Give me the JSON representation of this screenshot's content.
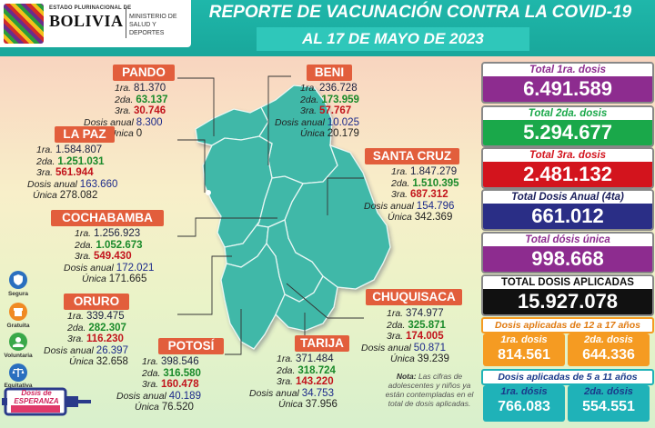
{
  "header": {
    "logo_small": "ESTADO PLURINACIONAL DE",
    "logo_big": "BOLIVIA",
    "ministry": "MINISTERIO DE SALUD Y DEPORTES",
    "title": "REPORTE DE VACUNACIÓN CONTRA LA COVID-19",
    "date": "AL 17 DE MAYO  DE 2023"
  },
  "labels": {
    "d1": "1ra.",
    "d2": "2da.",
    "d3": "3ra.",
    "anual": "Dosis anual",
    "unica": "Única"
  },
  "departments": [
    {
      "name": "PANDO",
      "d1": "81.370",
      "d2": "63.137",
      "d3": "30.746",
      "anual": "8.300",
      "unica": "0"
    },
    {
      "name": "BENI",
      "d1": "236.728",
      "d2": "173.959",
      "d3": "57.767",
      "anual": "10.025",
      "unica": "20.179"
    },
    {
      "name": "LA PAZ",
      "d1": "1.584.807",
      "d2": "1.251.031",
      "d3": "561.944",
      "anual": "163.660",
      "unica": "278.082"
    },
    {
      "name": "SANTA CRUZ",
      "d1": "1.847.279",
      "d2": "1.510.395",
      "d3": "687.312",
      "anual": "154.796",
      "unica": "342.369"
    },
    {
      "name": "COCHABAMBA",
      "d1": "1.256.923",
      "d2": "1.052.673",
      "d3": "549.430",
      "anual": "172.021",
      "unica": "171.665"
    },
    {
      "name": "ORURO",
      "d1": "339.475",
      "d2": "282.307",
      "d3": "116.230",
      "anual": "26.397",
      "unica": "32.658"
    },
    {
      "name": "CHUQUISACA",
      "d1": "374.977",
      "d2": "325.871",
      "d3": "174.005",
      "anual": "50.871",
      "unica": "39.239"
    },
    {
      "name": "POTOSÍ",
      "d1": "398.546",
      "d2": "316.580",
      "d3": "160.478",
      "anual": "40.189",
      "unica": "76.520"
    },
    {
      "name": "TARIJA",
      "d1": "371.484",
      "d2": "318.724",
      "d3": "143.220",
      "anual": "34.753",
      "unica": "37.956"
    }
  ],
  "totals": [
    {
      "label": "Total 1ra. dosis",
      "value": "6.491.589",
      "color": "#8d2c8f",
      "label_color": "#8d2c8f"
    },
    {
      "label": "Total 2da. dosis",
      "value": "5.294.677",
      "color": "#1aa84a",
      "label_color": "#1aa84a"
    },
    {
      "label": "Total 3ra. dosis",
      "value": "2.481.132",
      "color": "#d3141d",
      "label_color": "#d3141d"
    },
    {
      "label": "Total Dosis Anual (4ta)",
      "value": "661.012",
      "color": "#2a2e86",
      "label_color": "#1b1f5c"
    },
    {
      "label": "Total dósis única",
      "value": "998.668",
      "color": "#8d2c8f",
      "label_color": "#8d2c8f"
    },
    {
      "label": "TOTAL DOSIS APLICADAS",
      "value": "15.927.078",
      "color": "#111111",
      "label_color": "#111111"
    }
  ],
  "age_12_17": {
    "title": "Dosis aplicadas de 12 a 17 años",
    "d1_label": "1ra. dosis",
    "d1_value": "814.561",
    "d2_label": "2da. dosis",
    "d2_value": "644.336",
    "color": "#f59b22"
  },
  "age_5_11": {
    "title": "Dosis aplicadas de 5 a 11 años",
    "d1_label": "1ra. dósis",
    "d1_value": "766.083",
    "d2_label": "2da. dósis",
    "d2_value": "554.551",
    "color": "#1fb2b8"
  },
  "side_icons": [
    {
      "label": "Segura",
      "icon": "shield-icon",
      "color": "#2a6fbf"
    },
    {
      "label": "Gratuita",
      "icon": "gift-icon",
      "color": "#f08a24"
    },
    {
      "label": "Voluntaria",
      "icon": "hands-icon",
      "color": "#3aa84a"
    },
    {
      "label": "Equitativa",
      "icon": "scale-icon",
      "color": "#2a6fbf"
    }
  ],
  "badge": {
    "text": "Dosis de ESPERANZA"
  },
  "note": {
    "bold": "Nota:",
    "text": "Las cifras de adolescentes y niños ya están contempladas en el total de dosis aplicadas."
  },
  "map_color": "#3fb8a8"
}
